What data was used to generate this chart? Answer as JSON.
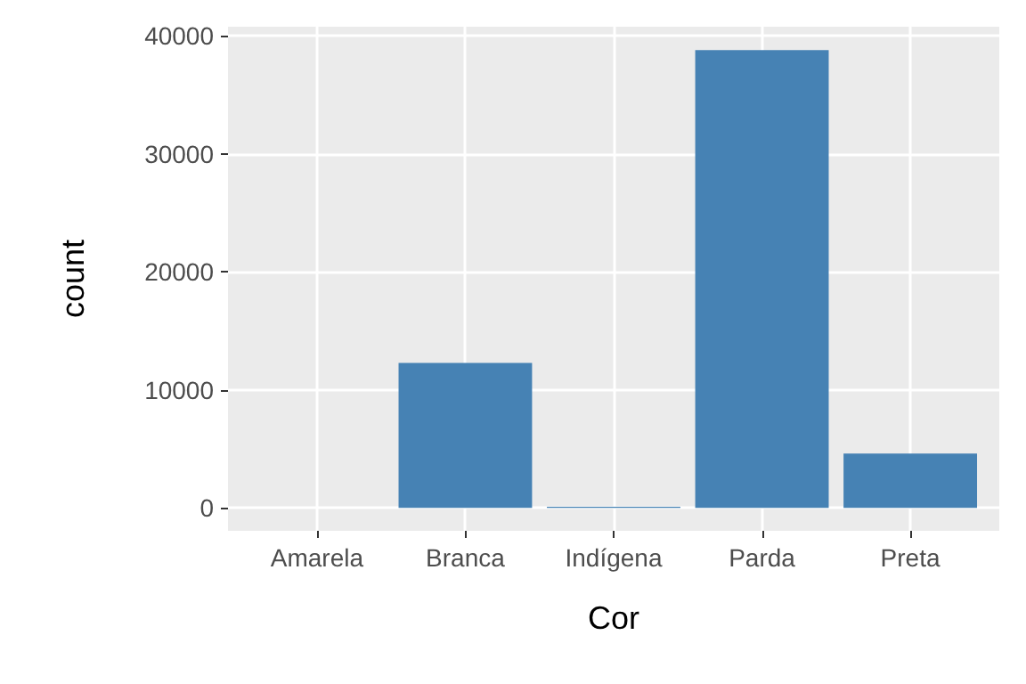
{
  "chart_data": {
    "type": "bar",
    "xlabel": "Cor",
    "ylabel": "count",
    "categories": [
      "Amarela",
      "Branca",
      "Indígena",
      "Parda",
      "Preta"
    ],
    "values": [
      0,
      12300,
      100,
      38800,
      4600
    ],
    "color": "#4682b4",
    "ylim": [
      -1940,
      40790
    ],
    "yticks": [
      0,
      10000,
      20000,
      30000,
      40000
    ],
    "grid": true
  }
}
